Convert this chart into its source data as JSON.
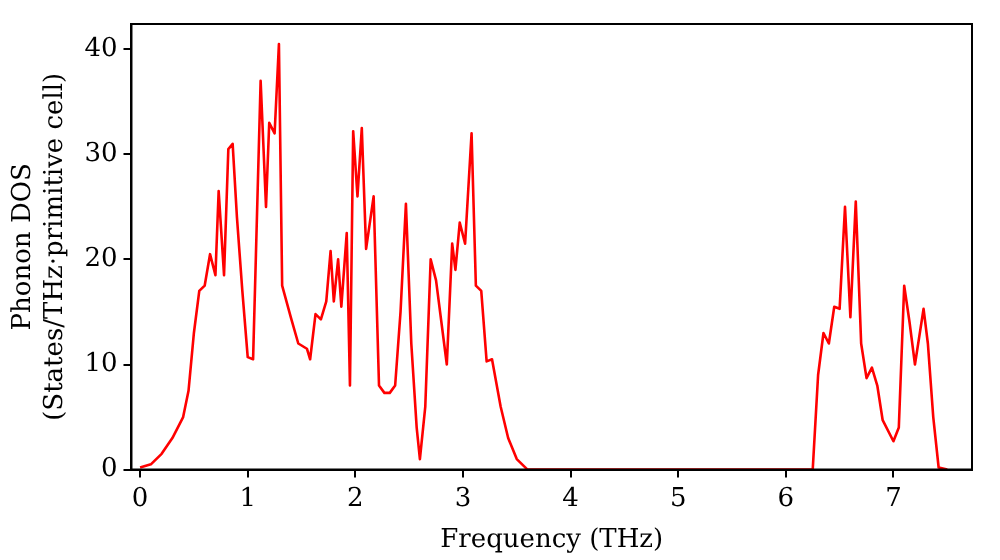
{
  "chart_data": {
    "type": "line",
    "xlabel": "Frequency (THz)",
    "ylabel": "Phonon DOS\n(States/THz·primitive cell)",
    "xlim": [
      -0.08,
      7.73
    ],
    "ylim": [
      0,
      42.4
    ],
    "xticks": [
      0,
      1,
      2,
      3,
      4,
      5,
      6,
      7
    ],
    "yticks": [
      0,
      10,
      20,
      30,
      40
    ],
    "grid": false,
    "legend": false,
    "marker": "none",
    "line_style": "solid",
    "series": [
      {
        "color": "#ff0000",
        "x": [
          0,
          0.1,
          0.2,
          0.3,
          0.4,
          0.45,
          0.5,
          0.55,
          0.6,
          0.65,
          0.7,
          0.73,
          0.78,
          0.82,
          0.86,
          0.9,
          0.95,
          1.0,
          1.05,
          1.12,
          1.17,
          1.2,
          1.25,
          1.29,
          1.32,
          1.4,
          1.47,
          1.55,
          1.58,
          1.63,
          1.68,
          1.73,
          1.77,
          1.8,
          1.84,
          1.87,
          1.92,
          1.95,
          1.98,
          2.02,
          2.06,
          2.1,
          2.17,
          2.22,
          2.27,
          2.32,
          2.37,
          2.42,
          2.47,
          2.52,
          2.57,
          2.6,
          2.65,
          2.7,
          2.75,
          2.85,
          2.9,
          2.93,
          2.97,
          3.02,
          3.08,
          3.12,
          3.17,
          3.22,
          3.27,
          3.35,
          3.42,
          3.5,
          3.6,
          6.25,
          6.3,
          6.35,
          6.4,
          6.45,
          6.5,
          6.55,
          6.6,
          6.65,
          6.7,
          6.75,
          6.8,
          6.85,
          6.9,
          7.0,
          7.05,
          7.1,
          7.15,
          7.2,
          7.28,
          7.32,
          7.37,
          7.42,
          7.5
        ],
        "values": [
          0.2,
          0.5,
          1.5,
          3,
          5,
          7.5,
          13,
          17,
          17.5,
          20.5,
          18.5,
          26.5,
          18.5,
          30.5,
          31,
          24,
          17,
          10.7,
          10.5,
          37,
          25,
          33,
          32,
          40.5,
          17.5,
          14.5,
          12,
          11.5,
          10.5,
          14.8,
          14.3,
          16,
          20.8,
          16,
          20,
          15.5,
          22.5,
          8,
          32.2,
          26,
          32.5,
          21,
          26,
          8,
          7.3,
          7.3,
          8,
          15,
          25.3,
          12,
          4,
          1,
          6,
          20,
          18,
          10,
          21.5,
          19,
          23.5,
          21.5,
          32,
          17.5,
          17,
          10.3,
          10.5,
          6,
          3,
          1,
          0,
          0,
          9,
          13,
          12,
          15.5,
          15.3,
          25,
          14.5,
          25.5,
          12,
          8.7,
          9.7,
          8,
          4.7,
          2.7,
          4,
          17.5,
          14,
          10,
          15.3,
          12,
          5,
          0.2,
          0
        ]
      }
    ]
  }
}
